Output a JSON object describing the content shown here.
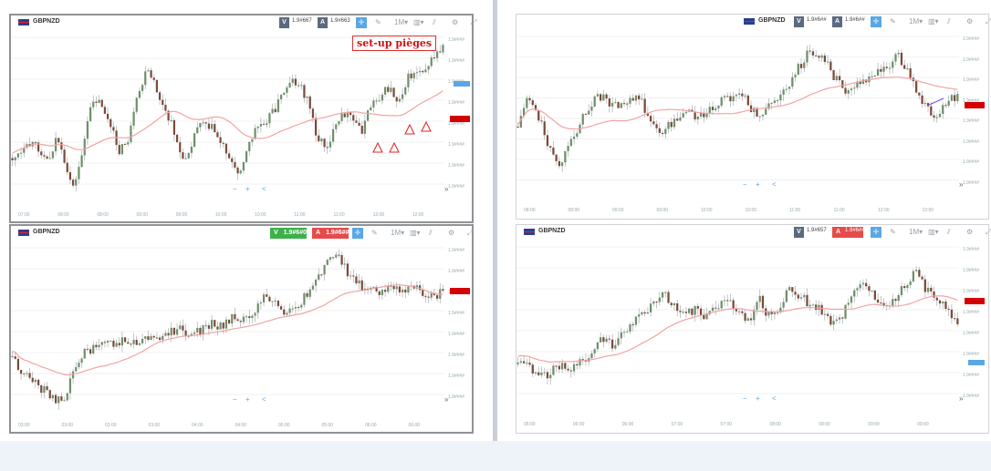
{
  "colors": {
    "bull": "#6f8f6b",
    "bear": "#7b4a3a",
    "ma": "#f2a3a3",
    "accent": "#5aa7e6",
    "ask": "#e64b4b",
    "bid": "#3db04a"
  },
  "panels": [
    {
      "id": "tl",
      "symbol": "GBPNZD",
      "bid": "1.9#667",
      "ask": "1.9#663",
      "annotation": "set-up pièges",
      "bid_green": false,
      "yticks": [
        "1.9####",
        "1.9####",
        "1.9####",
        "1.9####",
        "1.9####",
        "1.9####",
        "1.9####",
        "1.9####"
      ],
      "xticks": [
        "07:00",
        "08:00",
        "08:00",
        "09:00",
        "09:00",
        "10:00",
        "10:00",
        "11:00",
        "11:00",
        "12:00",
        "12:00"
      ]
    },
    {
      "id": "tr",
      "symbol": "GBPNZD",
      "bid": "1.9#6##",
      "ask": "1.9#6##",
      "annotation": "",
      "bid_green": false,
      "yticks": [
        "1.9####",
        "1.9####",
        "1.9####",
        "1.9####",
        "1.9####",
        "1.9####",
        "1.9####",
        "1.9####"
      ],
      "xticks": [
        "08:00",
        "08:00",
        "09:00",
        "09:00",
        "10:00",
        "10:00",
        "11:00",
        "11:00",
        "12:00",
        "12:00"
      ]
    },
    {
      "id": "bl",
      "symbol": "GBPNZD",
      "bid": "1.9#6#0",
      "ask": "1.9#6##0",
      "annotation": "",
      "bid_green": true,
      "yticks": [
        "1.9####",
        "1.9####",
        "1.9####",
        "1.9####",
        "1.9####",
        "1.9####",
        "1.9####",
        "1.9####"
      ],
      "xticks": [
        "03:00",
        "03:00",
        "03:00",
        "03:00",
        "04:00",
        "04:00",
        "05:00",
        "05:00",
        "06:00",
        "06:00"
      ]
    },
    {
      "id": "br",
      "symbol": "GBPNZD",
      "bid": "1.9#657",
      "ask": "1.9#6##7",
      "annotation": "",
      "bid_green": false,
      "yticks": [
        "1.9####",
        "1.9####",
        "1.9####",
        "1.9####",
        "1.9####",
        "1.9####",
        "1.9####",
        "1.9####"
      ],
      "xticks": [
        "05:00",
        "06:00",
        "06:00",
        "07:00",
        "07:00",
        "08:00",
        "08:00",
        "09:00",
        "09:00"
      ]
    }
  ],
  "toolbar": {
    "bid_letter": "V",
    "ask_letter": "A",
    "tf": "1M",
    "zoom_out": "−",
    "zoom_in": "+",
    "share": "<",
    "scroll": "»"
  }
}
